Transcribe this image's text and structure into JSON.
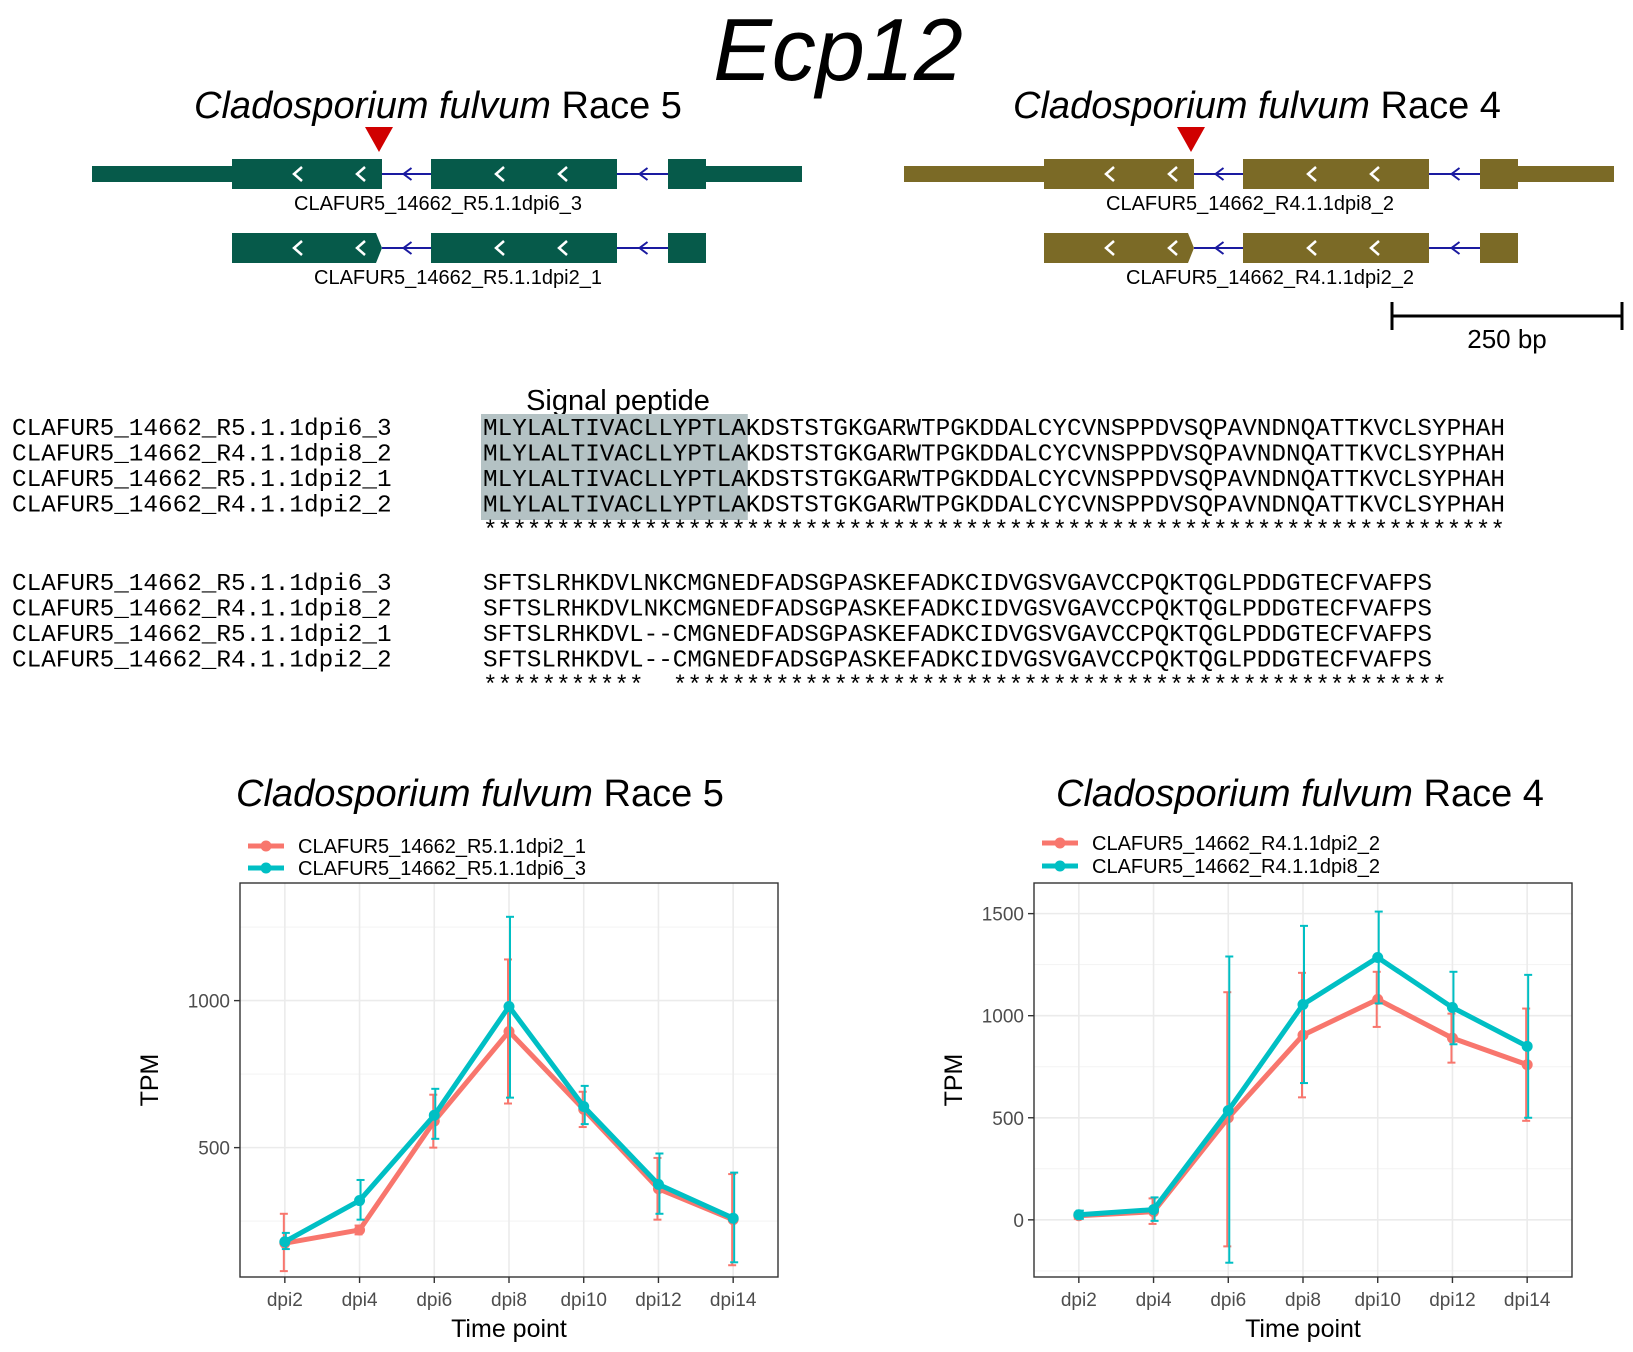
{
  "figure_title": "Ecp12",
  "gene_models": [
    {
      "species_italic": "Cladosporium fulvum",
      "race": "Race 5",
      "color": "#065a4a",
      "transcripts": [
        "CLAFUR5_14662_R5.1.1dpi6_3",
        "CLAFUR5_14662_R5.1.1dpi2_1"
      ]
    },
    {
      "species_italic": "Cladosporium fulvum",
      "race": "Race 4",
      "color": "#7b6a26",
      "transcripts": [
        "CLAFUR5_14662_R4.1.1dpi8_2",
        "CLAFUR5_14662_R4.1.1dpi2_2"
      ]
    }
  ],
  "scale_bar_label": "250 bp",
  "alignment": {
    "signal_peptide_label": "Signal peptide",
    "blocks": [
      {
        "rows": [
          {
            "name": "CLAFUR5_14662_R5.1.1dpi6_3",
            "sp": "MLYLALTIVACLLYPTLA",
            "seq": "KDSTSTGKGARWTPGKDDALCYCVNSPPDVSQPAVNDNQATTKVCLSYPHAH"
          },
          {
            "name": "CLAFUR5_14662_R4.1.1dpi8_2",
            "sp": "MLYLALTIVACLLYPTLA",
            "seq": "KDSTSTGKGARWTPGKDDALCYCVNSPPDVSQPAVNDNQATTKVCLSYPHAH"
          },
          {
            "name": "CLAFUR5_14662_R5.1.1dpi2_1",
            "sp": "MLYLALTIVACLLYPTLA",
            "seq": "KDSTSTGKGARWTPGKDDALCYCVNSPPDVSQPAVNDNQATTKVCLSYPHAH"
          },
          {
            "name": "CLAFUR5_14662_R4.1.1dpi2_2",
            "sp": "MLYLALTIVACLLYPTLA",
            "seq": "KDSTSTGKGARWTPGKDDALCYCVNSPPDVSQPAVNDNQATTKVCLSYPHAH"
          }
        ],
        "consensus": "**********************************************************************"
      },
      {
        "rows": [
          {
            "name": "CLAFUR5_14662_R5.1.1dpi6_3",
            "sp": "",
            "seq": "SFTSLRHKDVLNKCMGNEDFADSGPASKEFADKCIDVGSVGAVCCPQKTQGLPDDGTECFVAFPS"
          },
          {
            "name": "CLAFUR5_14662_R4.1.1dpi8_2",
            "sp": "",
            "seq": "SFTSLRHKDVLNKCMGNEDFADSGPASKEFADKCIDVGSVGAVCCPQKTQGLPDDGTECFVAFPS"
          },
          {
            "name": "CLAFUR5_14662_R5.1.1dpi2_1",
            "sp": "",
            "seq": "SFTSLRHKDVL--CMGNEDFADSGPASKEFADKCIDVGSVGAVCCPQKTQGLPDDGTECFVAFPS"
          },
          {
            "name": "CLAFUR5_14662_R4.1.1dpi2_2",
            "sp": "",
            "seq": "SFTSLRHKDVL--CMGNEDFADSGPASKEFADKCIDVGSVGAVCCPQKTQGLPDDGTECFVAFPS"
          }
        ],
        "consensus": "***********  *****************************************************"
      }
    ]
  },
  "chart_data": [
    {
      "type": "line",
      "title_italic": "Cladosporium fulvum",
      "title_rest": "Race 5",
      "xlabel": "Time point",
      "ylabel": "TPM",
      "categories": [
        "dpi2",
        "dpi4",
        "dpi6",
        "dpi8",
        "dpi10",
        "dpi12",
        "dpi14"
      ],
      "ylim": [
        60,
        1400
      ],
      "yticks": [
        500,
        1000
      ],
      "grid": true,
      "legend_position": "top-left",
      "series": [
        {
          "name": "CLAFUR5_14662_R5.1.1dpi2_1",
          "color": "#f8766d",
          "values": [
            175,
            220,
            590,
            895,
            630,
            360,
            255
          ],
          "err_low": [
            80,
            205,
            500,
            650,
            570,
            255,
            100
          ],
          "err_high": [
            275,
            235,
            680,
            1140,
            690,
            465,
            410
          ]
        },
        {
          "name": "CLAFUR5_14662_R5.1.1dpi6_3",
          "color": "#00bfc4",
          "values": [
            180,
            320,
            610,
            980,
            640,
            375,
            260
          ],
          "err_low": [
            155,
            255,
            530,
            670,
            580,
            275,
            110
          ],
          "err_high": [
            210,
            390,
            700,
            1285,
            710,
            480,
            415
          ]
        }
      ]
    },
    {
      "type": "line",
      "title_italic": "Cladosporium fulvum",
      "title_rest": "Race 4",
      "xlabel": "Time point",
      "ylabel": "TPM",
      "categories": [
        "dpi2",
        "dpi4",
        "dpi6",
        "dpi8",
        "dpi10",
        "dpi12",
        "dpi14"
      ],
      "ylim": [
        -280,
        1650
      ],
      "yticks": [
        0,
        500,
        1000,
        1500
      ],
      "grid": true,
      "legend_position": "top-left",
      "series": [
        {
          "name": "CLAFUR5_14662_R4.1.1dpi2_2",
          "color": "#f8766d",
          "values": [
            20,
            40,
            500,
            905,
            1080,
            890,
            760
          ],
          "err_low": [
            5,
            -20,
            -130,
            600,
            945,
            770,
            485
          ],
          "err_high": [
            35,
            105,
            1115,
            1210,
            1215,
            1010,
            1035
          ]
        },
        {
          "name": "CLAFUR5_14662_R4.1.1dpi8_2",
          "color": "#00bfc4",
          "values": [
            25,
            50,
            535,
            1055,
            1285,
            1040,
            850
          ],
          "err_low": [
            5,
            -5,
            -210,
            670,
            1060,
            860,
            500
          ],
          "err_high": [
            45,
            110,
            1290,
            1440,
            1510,
            1215,
            1200
          ]
        }
      ]
    }
  ]
}
